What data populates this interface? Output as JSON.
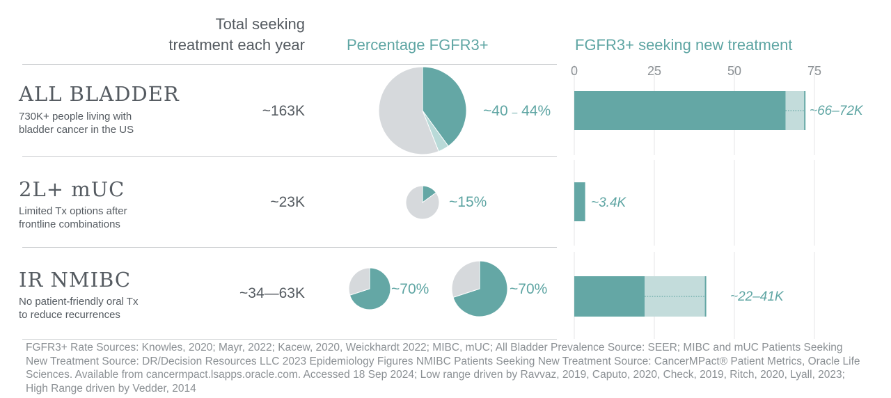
{
  "headers": {
    "total": [
      "Total seeking",
      "treatment each year"
    ],
    "percentage": "Percentage FGFR3+",
    "seeking": "FGFR3+ seeking new treatment"
  },
  "rows": [
    {
      "title": "ALL BLADDER",
      "subtitle": [
        "730K+ people living with",
        "bladder cancer in the US"
      ],
      "total": "~163K",
      "pct_low": "~40",
      "pct_dash": "–",
      "pct_high": "44%",
      "bar_label": "~66–72K"
    },
    {
      "title": "2L+ mUC",
      "subtitle": [
        "Limited Tx options after",
        "frontline combinations"
      ],
      "total": "~23K",
      "pct_text": "~15%",
      "bar_label": "~3.4K"
    },
    {
      "title": "IR NMIBC",
      "subtitle": [
        "No patient-friendly oral Tx",
        "to reduce recurrences"
      ],
      "total": "~34—63K",
      "pct_text_1": "~70%",
      "pct_text_2": "~70%",
      "bar_label": "~22–41K"
    }
  ],
  "chart_data": [
    {
      "type": "pie",
      "title": "Percentage FGFR3+",
      "charts": [
        {
          "row": "ALL BLADDER",
          "slices": [
            40,
            4,
            56
          ],
          "total": "~163K"
        },
        {
          "row": "2L+ mUC",
          "slices": [
            15,
            85
          ],
          "total": "~23K"
        },
        {
          "row": "IR NMIBC (low)",
          "slices": [
            70,
            30
          ],
          "total": "~34K"
        },
        {
          "row": "IR NMIBC (high)",
          "slices": [
            70,
            30
          ],
          "total": "~63K"
        }
      ],
      "colors": [
        "#64a7a5",
        "#b9dad8",
        "#d6d9dc"
      ]
    },
    {
      "type": "bar",
      "orientation": "horizontal",
      "title": "FGFR3+ seeking new treatment",
      "xlim": [
        0,
        75
      ],
      "ticks": [
        0,
        25,
        50,
        75
      ],
      "categories": [
        "ALL BLADDER",
        "2L+ mUC",
        "IR NMIBC"
      ],
      "low": [
        66,
        3.4,
        22
      ],
      "high": [
        72,
        3.4,
        41
      ],
      "grid": true,
      "colors": {
        "low": "#64a7a5",
        "range": "#c3dcdb",
        "grid": "#e4e6e7"
      }
    }
  ],
  "footer": "FGFR3+ Rate Sources: Knowles, 2020; Mayr, 2022; Kacew, 2020, Weickhardt 2022; MIBC, mUC; All Bladder Prevalence Source: SEER; MIBC and mUC Patients Seeking New Treatment Source: DR/Decision Resources LLC 2023 Epidemiology Figures NMIBC Patients Seeking New Treatment Source: CancerMPact® Patient Metrics, Oracle Life Sciences. Available from cancermpact.lsapps.oracle.com. Accessed 18 Sep 2024; Low range driven by Ravvaz, 2019, Caputo, 2020, Check, 2019, Ritch, 2020, Lyall, 2023; High Range driven by Vedder, 2014"
}
